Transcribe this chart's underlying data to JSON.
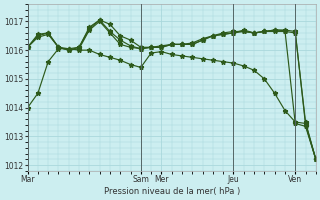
{
  "background_color": "#cceef0",
  "grid_color": "#aad8dc",
  "line_color": "#2d5a1b",
  "xlabel": "Pression niveau de la mer( hPa )",
  "ylim": [
    1011.8,
    1017.6
  ],
  "yticks": [
    1012,
    1013,
    1014,
    1015,
    1016,
    1017
  ],
  "day_labels": [
    "Mar",
    "Sam",
    "Mer",
    "Jeu",
    "Ven"
  ],
  "day_positions": [
    0,
    11,
    13,
    20,
    26
  ],
  "vline_positions": [
    0,
    11,
    20,
    26
  ],
  "s1_x": [
    0,
    1,
    2,
    3,
    4,
    5,
    6,
    7,
    8,
    9,
    10,
    11,
    12,
    13,
    14,
    15,
    16,
    17,
    18,
    19,
    20,
    21,
    22,
    23,
    24,
    25,
    26,
    27,
    28
  ],
  "s1_y": [
    1014.0,
    1014.5,
    1015.6,
    1016.05,
    1016.05,
    1016.0,
    1016.0,
    1015.85,
    1015.75,
    1015.65,
    1015.5,
    1015.4,
    1015.9,
    1015.95,
    1015.85,
    1015.8,
    1015.75,
    1015.7,
    1015.65,
    1015.6,
    1015.55,
    1015.45,
    1015.3,
    1015.0,
    1014.5,
    1013.9,
    1013.5,
    1013.45,
    1012.2
  ],
  "s2_x": [
    0,
    1,
    2,
    3,
    4,
    5,
    6,
    7,
    8,
    9,
    10,
    11,
    12,
    13,
    14,
    15,
    16,
    17,
    18,
    19,
    20,
    21,
    22,
    23,
    24,
    25,
    26,
    27,
    28
  ],
  "s2_y": [
    1016.1,
    1016.55,
    1016.6,
    1016.1,
    1016.05,
    1016.1,
    1016.75,
    1017.05,
    1016.65,
    1016.35,
    1016.15,
    1016.05,
    1016.1,
    1016.1,
    1016.2,
    1016.2,
    1016.25,
    1016.4,
    1016.5,
    1016.6,
    1016.65,
    1016.65,
    1016.6,
    1016.65,
    1016.7,
    1016.7,
    1016.65,
    1013.4,
    1012.2
  ],
  "s3_x": [
    0,
    1,
    2,
    3,
    4,
    5,
    6,
    7,
    8,
    9,
    10,
    11,
    12,
    13,
    14,
    15,
    16,
    17,
    18,
    19,
    20,
    21,
    22,
    23,
    24,
    25,
    26,
    27,
    28
  ],
  "s3_y": [
    1016.1,
    1016.5,
    1016.6,
    1016.1,
    1016.0,
    1016.05,
    1016.7,
    1017.0,
    1016.6,
    1016.2,
    1016.1,
    1016.05,
    1016.1,
    1016.1,
    1016.2,
    1016.2,
    1016.2,
    1016.35,
    1016.5,
    1016.55,
    1016.6,
    1016.65,
    1016.6,
    1016.65,
    1016.65,
    1016.65,
    1016.6,
    1013.5,
    1012.2
  ],
  "s4_x": [
    0,
    1,
    2,
    3,
    4,
    5,
    6,
    7,
    8,
    9,
    10,
    11,
    12,
    13,
    14,
    15,
    16,
    17,
    18,
    19,
    20,
    21,
    22,
    23,
    24,
    25,
    26,
    27,
    28
  ],
  "s4_y": [
    1016.1,
    1016.45,
    1016.55,
    1016.1,
    1016.0,
    1016.1,
    1016.8,
    1017.05,
    1016.9,
    1016.5,
    1016.35,
    1016.1,
    1016.1,
    1016.15,
    1016.2,
    1016.2,
    1016.2,
    1016.35,
    1016.5,
    1016.55,
    1016.6,
    1016.7,
    1016.6,
    1016.65,
    1016.7,
    1016.68,
    1013.45,
    1013.35,
    1012.2
  ]
}
